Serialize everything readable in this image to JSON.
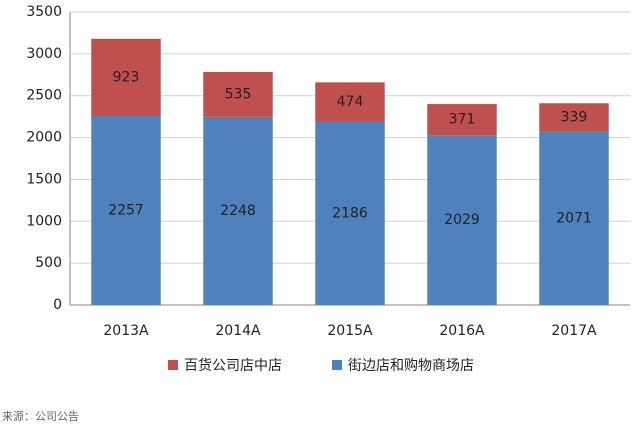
{
  "chart_data": {
    "type": "stacked_bar",
    "categories": [
      "2013A",
      "2014A",
      "2015A",
      "2016A",
      "2017A"
    ],
    "series": [
      {
        "name": "百货公司店中店",
        "color": "#c0504d",
        "values": [
          923,
          535,
          474,
          371,
          339
        ]
      },
      {
        "name": "街边店和购物商场店",
        "color": "#4f81bd",
        "values": [
          2257,
          2248,
          2186,
          2029,
          2071
        ]
      }
    ],
    "ylim": [
      0,
      3500
    ],
    "yticks": [
      0,
      500,
      1000,
      1500,
      2000,
      2500,
      3000,
      3500
    ],
    "grid": true,
    "legend": "bottom",
    "source": "来源：公司公告"
  }
}
